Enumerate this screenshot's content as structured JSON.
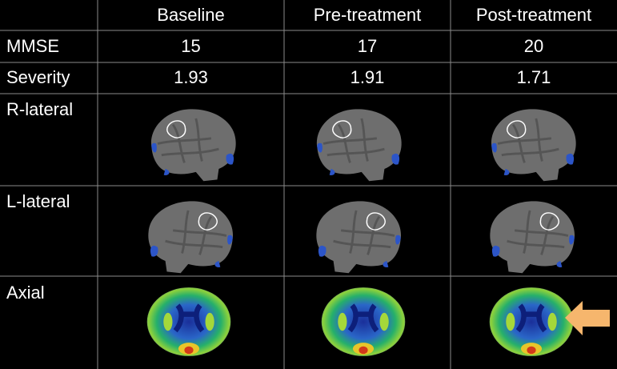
{
  "table": {
    "header": [
      "Baseline",
      "Pre-treatment",
      "Post-treatment"
    ],
    "rows": [
      {
        "label": "MMSE",
        "cells": [
          "15",
          "17",
          "20"
        ]
      },
      {
        "label": "Severity",
        "cells": [
          "1.93",
          "1.91",
          "1.71"
        ]
      },
      {
        "label": "R-lateral"
      },
      {
        "label": "L-lateral"
      },
      {
        "label": "Axial"
      }
    ]
  }
}
